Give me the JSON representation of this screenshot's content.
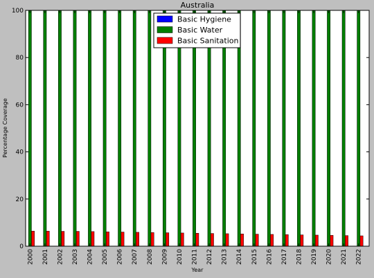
{
  "chart_data": {
    "type": "bar",
    "title": "Australia",
    "xlabel": "Year",
    "ylabel": "Percentage Coverage",
    "ylim": [
      0,
      100
    ],
    "yticks": [
      0,
      20,
      40,
      60,
      80,
      100
    ],
    "grid": false,
    "legend_position": "top-center",
    "categories": [
      "2000",
      "2001",
      "2002",
      "2003",
      "2004",
      "2005",
      "2006",
      "2007",
      "2008",
      "2009",
      "2010",
      "2011",
      "2012",
      "2013",
      "2014",
      "2015",
      "2016",
      "2017",
      "2018",
      "2019",
      "2020",
      "2021",
      "2022"
    ],
    "series": [
      {
        "name": "Basic Hygiene",
        "color": "#0000ff",
        "values": [
          null,
          null,
          null,
          null,
          null,
          null,
          null,
          null,
          null,
          null,
          null,
          null,
          null,
          null,
          null,
          null,
          null,
          null,
          null,
          null,
          null,
          null,
          null
        ]
      },
      {
        "name": "Basic Water",
        "color": "#007f00",
        "values": [
          100,
          100,
          100,
          100,
          100,
          100,
          100,
          100,
          100,
          100,
          100,
          100,
          100,
          100,
          100,
          100,
          100,
          100,
          100,
          100,
          100,
          100,
          100
        ]
      },
      {
        "name": "Basic Sanitation",
        "color": "#ff0000",
        "values": [
          6.4,
          6.4,
          6.3,
          6.3,
          6.2,
          6.1,
          6.0,
          5.9,
          5.8,
          5.7,
          5.6,
          5.5,
          5.4,
          5.3,
          5.2,
          5.1,
          5.0,
          4.9,
          4.8,
          4.7,
          4.6,
          4.5,
          4.4
        ]
      }
    ]
  }
}
